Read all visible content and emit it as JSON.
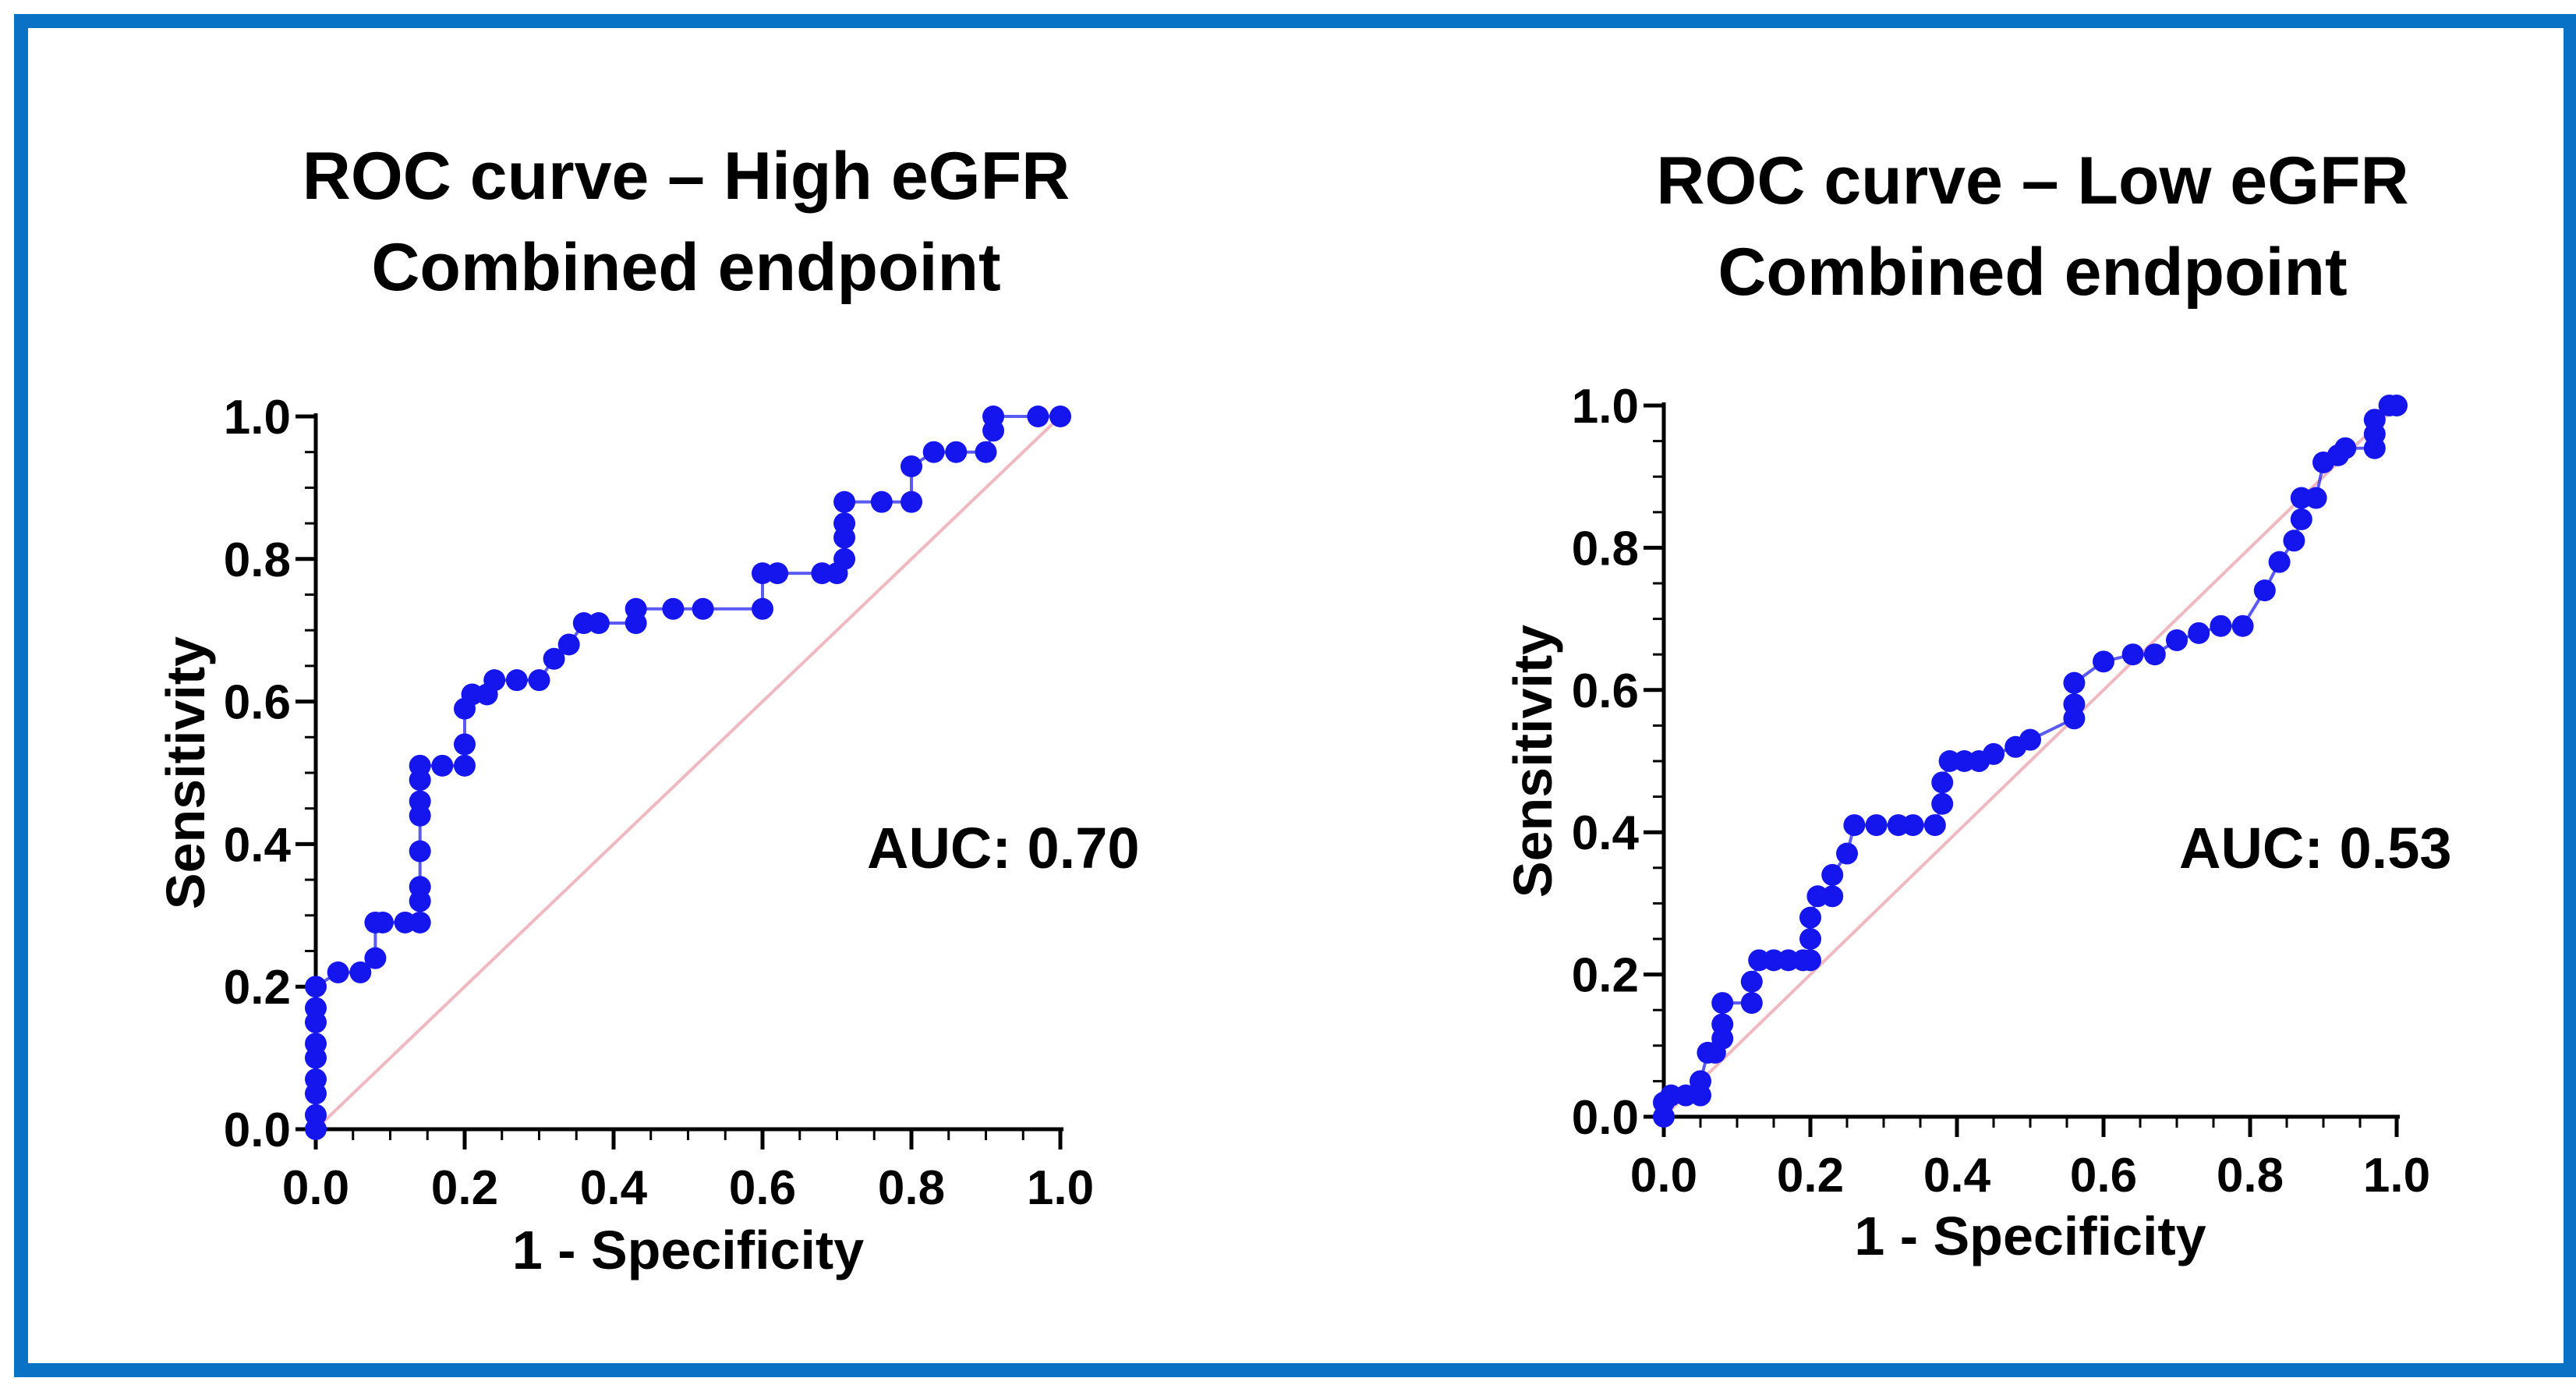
{
  "colors": {
    "frame": "#0a72c4",
    "points": "#1515ee",
    "diagonal": "#f0b8c0",
    "axis": "#000000"
  },
  "chart_data": [
    {
      "type": "line",
      "title_line1": "ROC curve – High eGFR",
      "title_line2": "Combined endpoint",
      "xlabel": "1 - Specificity",
      "ylabel": "Sensitivity",
      "xlim": [
        0,
        1
      ],
      "ylim": [
        0,
        1
      ],
      "xticks": [
        "0.0",
        "0.2",
        "0.4",
        "0.6",
        "0.8",
        "1.0"
      ],
      "yticks": [
        "0.0",
        "0.2",
        "0.4",
        "0.6",
        "0.8",
        "1.0"
      ],
      "annotation": "AUC: 0.70",
      "reference_line": "diagonal",
      "series": [
        {
          "name": "ROC",
          "x": [
            0,
            0,
            0,
            0,
            0,
            0,
            0,
            0,
            0,
            0.03,
            0.06,
            0.08,
            0.08,
            0.09,
            0.12,
            0.14,
            0.14,
            0.14,
            0.14,
            0.14,
            0.14,
            0.14,
            0.14,
            0.17,
            0.2,
            0.2,
            0.2,
            0.21,
            0.23,
            0.24,
            0.27,
            0.3,
            0.32,
            0.34,
            0.36,
            0.38,
            0.43,
            0.43,
            0.48,
            0.52,
            0.6,
            0.6,
            0.62,
            0.68,
            0.7,
            0.71,
            0.71,
            0.71,
            0.71,
            0.76,
            0.8,
            0.8,
            0.83,
            0.86,
            0.9,
            0.91,
            0.91,
            0.97,
            1.0
          ],
          "y": [
            0,
            0.02,
            0.05,
            0.07,
            0.1,
            0.12,
            0.15,
            0.17,
            0.2,
            0.22,
            0.22,
            0.24,
            0.29,
            0.29,
            0.29,
            0.29,
            0.32,
            0.34,
            0.39,
            0.44,
            0.46,
            0.49,
            0.51,
            0.51,
            0.51,
            0.54,
            0.59,
            0.61,
            0.61,
            0.63,
            0.63,
            0.63,
            0.66,
            0.68,
            0.71,
            0.71,
            0.71,
            0.73,
            0.73,
            0.73,
            0.73,
            0.78,
            0.78,
            0.78,
            0.78,
            0.8,
            0.83,
            0.85,
            0.88,
            0.88,
            0.88,
            0.93,
            0.95,
            0.95,
            0.95,
            0.98,
            1.0,
            1.0,
            1.0
          ]
        }
      ]
    },
    {
      "type": "line",
      "title_line1": "ROC curve – Low eGFR",
      "title_line2": "Combined endpoint",
      "xlabel": "1 - Specificity",
      "ylabel": "Sensitivity",
      "xlim": [
        0,
        1
      ],
      "ylim": [
        0,
        1
      ],
      "xticks": [
        "0.0",
        "0.2",
        "0.4",
        "0.6",
        "0.8",
        "1.0"
      ],
      "yticks": [
        "0.0",
        "0.2",
        "0.4",
        "0.6",
        "0.8",
        "1.0"
      ],
      "annotation": "AUC: 0.53",
      "reference_line": "diagonal",
      "series": [
        {
          "name": "ROC",
          "x": [
            0,
            0,
            0.01,
            0.03,
            0.05,
            0.05,
            0.06,
            0.07,
            0.08,
            0.08,
            0.08,
            0.12,
            0.12,
            0.13,
            0.15,
            0.17,
            0.19,
            0.2,
            0.2,
            0.2,
            0.21,
            0.23,
            0.23,
            0.25,
            0.26,
            0.29,
            0.32,
            0.34,
            0.37,
            0.38,
            0.38,
            0.39,
            0.41,
            0.43,
            0.45,
            0.48,
            0.5,
            0.56,
            0.56,
            0.56,
            0.6,
            0.64,
            0.67,
            0.7,
            0.73,
            0.76,
            0.79,
            0.82,
            0.84,
            0.86,
            0.87,
            0.87,
            0.89,
            0.9,
            0.92,
            0.93,
            0.97,
            0.97,
            0.97,
            0.99,
            1.0
          ],
          "y": [
            0,
            0.02,
            0.03,
            0.03,
            0.03,
            0.05,
            0.09,
            0.09,
            0.11,
            0.13,
            0.16,
            0.16,
            0.19,
            0.22,
            0.22,
            0.22,
            0.22,
            0.22,
            0.25,
            0.28,
            0.31,
            0.31,
            0.34,
            0.37,
            0.41,
            0.41,
            0.41,
            0.41,
            0.41,
            0.44,
            0.47,
            0.5,
            0.5,
            0.5,
            0.51,
            0.52,
            0.53,
            0.56,
            0.58,
            0.61,
            0.64,
            0.65,
            0.65,
            0.67,
            0.68,
            0.69,
            0.69,
            0.74,
            0.78,
            0.81,
            0.84,
            0.87,
            0.87,
            0.92,
            0.93,
            0.94,
            0.94,
            0.96,
            0.98,
            1.0,
            1.0
          ]
        }
      ]
    }
  ]
}
